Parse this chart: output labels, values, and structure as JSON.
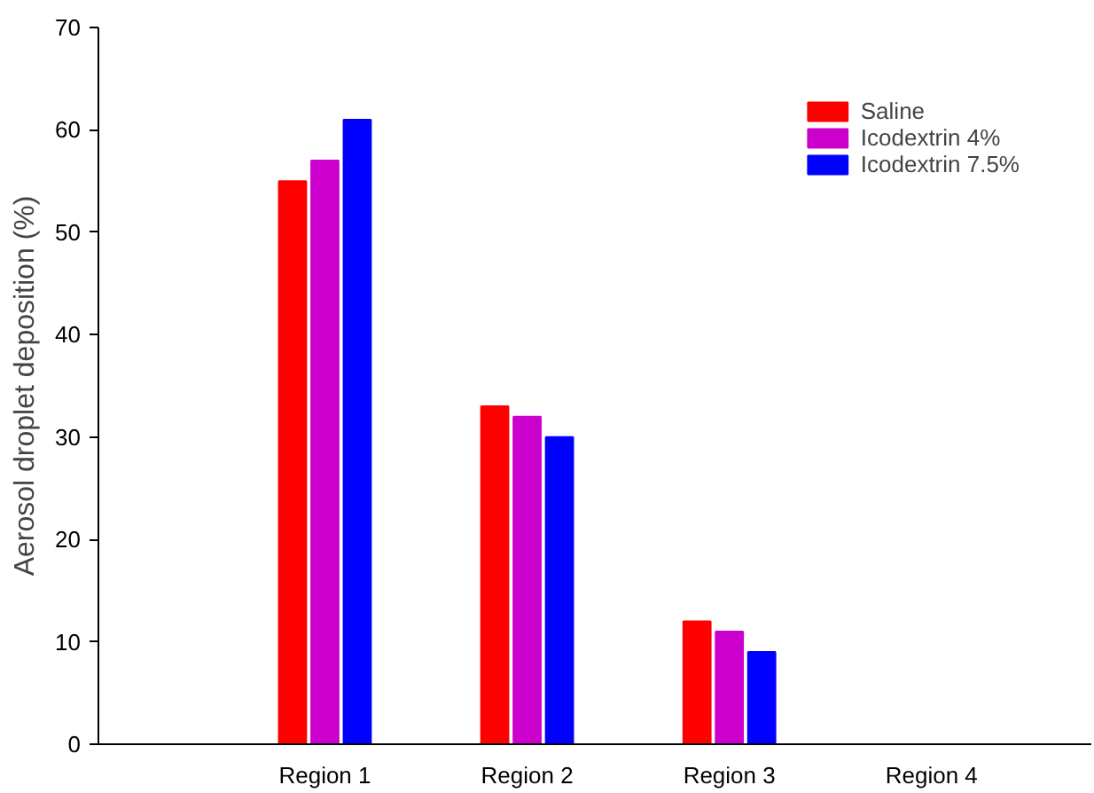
{
  "chart_data": {
    "type": "bar",
    "ylabel": "Aerosol droplet deposition (%)",
    "categories": [
      "Region 1",
      "Region 2",
      "Region 3",
      "Region 4"
    ],
    "series": [
      {
        "name": "Saline",
        "color": "#ff0000",
        "values": [
          55,
          33,
          12,
          null
        ]
      },
      {
        "name": "Icodextrin 4%",
        "color": "#cc00cc",
        "values": [
          57,
          32,
          11,
          null
        ]
      },
      {
        "name": "Icodextrin 7.5%",
        "color": "#0000ff",
        "values": [
          61,
          30,
          9,
          null
        ]
      }
    ],
    "ylim": [
      0,
      70
    ],
    "yticks": [
      0,
      10,
      20,
      30,
      40,
      50,
      60,
      70
    ],
    "grid": false,
    "legend": "top right"
  }
}
